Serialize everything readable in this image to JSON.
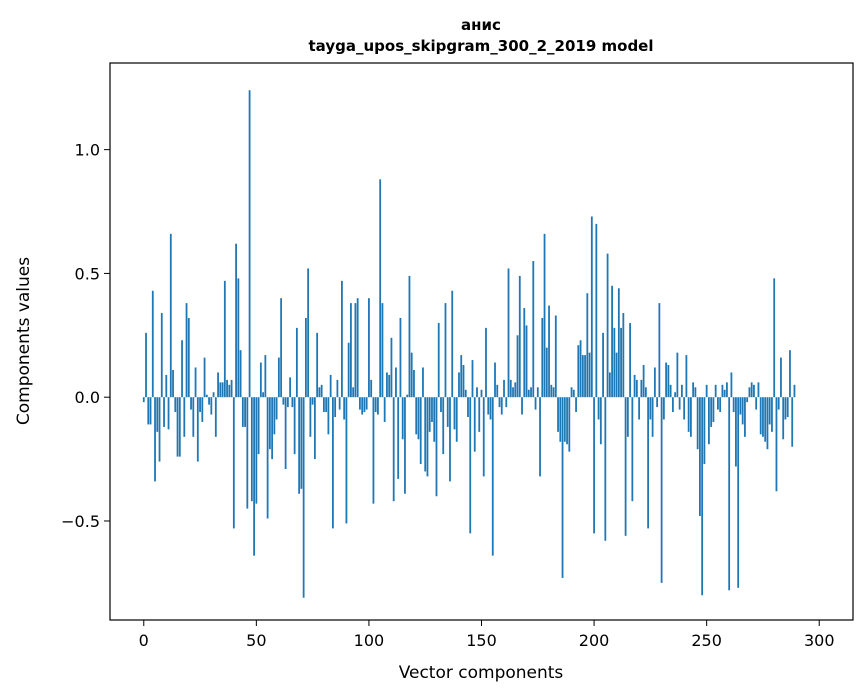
{
  "chart_data": {
    "type": "bar",
    "title": "анис",
    "subtitle": "tayga_upos_skipgram_300_2_2019 model",
    "xlabel": "Vector components",
    "ylabel": "Components values",
    "xlim": [
      -15,
      315
    ],
    "ylim": [
      -0.9,
      1.35
    ],
    "xticks": [
      0,
      50,
      100,
      150,
      200,
      250,
      300
    ],
    "yticks": [
      -0.5,
      0.0,
      0.5,
      1.0
    ],
    "ytick_labels": [
      "−0.5",
      "0.0",
      "0.5",
      "1.0"
    ],
    "bar_color": "#1f77b4",
    "grid": false,
    "values": [
      -0.02,
      0.26,
      -0.11,
      -0.11,
      0.43,
      -0.34,
      -0.14,
      -0.26,
      0.34,
      -0.12,
      0.09,
      -0.13,
      0.66,
      0.11,
      -0.06,
      -0.24,
      -0.24,
      0.23,
      -0.16,
      0.38,
      0.32,
      -0.05,
      -0.16,
      0.12,
      -0.26,
      -0.06,
      -0.1,
      0.16,
      0.01,
      -0.03,
      -0.07,
      0.02,
      -0.16,
      0.1,
      0.06,
      0.06,
      0.47,
      0.07,
      0.05,
      0.07,
      -0.53,
      0.62,
      0.48,
      0.19,
      -0.12,
      -0.12,
      -0.45,
      1.24,
      -0.42,
      -0.64,
      -0.43,
      -0.23,
      0.14,
      0.02,
      0.17,
      -0.49,
      -0.21,
      -0.25,
      -0.15,
      -0.09,
      0.16,
      0.4,
      -0.03,
      -0.29,
      -0.04,
      0.08,
      -0.04,
      -0.23,
      0.28,
      -0.39,
      -0.37,
      -0.81,
      0.32,
      0.52,
      -0.16,
      -0.03,
      -0.25,
      0.26,
      0.04,
      0.05,
      -0.06,
      -0.06,
      -0.15,
      0.09,
      -0.53,
      -0.08,
      0.07,
      -0.05,
      0.47,
      -0.09,
      -0.51,
      0.22,
      0.38,
      0.04,
      0.38,
      0.4,
      -0.05,
      -0.07,
      -0.06,
      -0.05,
      0.4,
      0.07,
      -0.43,
      -0.06,
      -0.07,
      0.88,
      0.38,
      -0.1,
      0.1,
      0.09,
      0.24,
      -0.42,
      0.12,
      -0.33,
      0.32,
      -0.17,
      -0.39,
      0.01,
      0.49,
      0.18,
      0.11,
      -0.15,
      -0.17,
      -0.27,
      0.12,
      -0.3,
      -0.32,
      -0.14,
      -0.1,
      -0.18,
      -0.4,
      0.3,
      -0.06,
      -0.23,
      0.38,
      -0.12,
      -0.34,
      0.43,
      -0.13,
      -0.18,
      0.1,
      0.17,
      0.13,
      0.03,
      -0.08,
      -0.55,
      0.15,
      -0.22,
      0.04,
      -0.14,
      0.03,
      -0.32,
      0.28,
      -0.07,
      -0.09,
      -0.64,
      0.14,
      0.05,
      -0.04,
      -0.07,
      0.07,
      -0.04,
      0.52,
      0.07,
      0.04,
      0.06,
      0.25,
      0.49,
      -0.07,
      0.36,
      0.29,
      0.03,
      0.04,
      0.55,
      -0.05,
      0.04,
      -0.32,
      0.32,
      0.66,
      0.2,
      0.37,
      0.05,
      0.04,
      0.33,
      -0.14,
      -0.18,
      -0.73,
      -0.18,
      -0.19,
      -0.22,
      0.04,
      0.03,
      -0.06,
      0.21,
      0.23,
      0.17,
      0.17,
      0.42,
      0.18,
      0.73,
      -0.55,
      0.7,
      -0.09,
      -0.19,
      0.26,
      -0.58,
      0.58,
      0.1,
      0.45,
      0.28,
      0.18,
      0.44,
      0.28,
      0.34,
      -0.56,
      -0.16,
      0.3,
      -0.42,
      0.09,
      0.07,
      -0.09,
      0.07,
      0.13,
      0.04,
      -0.53,
      -0.09,
      -0.16,
      0.12,
      -0.04,
      0.38,
      -0.75,
      -0.09,
      0.14,
      0.13,
      0.05,
      -0.06,
      0.02,
      0.18,
      -0.05,
      0.05,
      -0.09,
      0.17,
      -0.14,
      -0.16,
      0.06,
      0.04,
      -0.21,
      -0.48,
      -0.8,
      -0.27,
      0.05,
      -0.19,
      -0.12,
      -0.1,
      0.05,
      -0.05,
      -0.06,
      0.05,
      0.03,
      0.06,
      -0.78,
      0.1,
      -0.06,
      -0.28,
      -0.77,
      -0.07,
      -0.11,
      -0.16,
      -0.02,
      0.04,
      0.06,
      0.05,
      -0.05,
      0.06,
      -0.15,
      -0.16,
      -0.18,
      -0.21,
      -0.11,
      -0.14,
      0.48,
      -0.38,
      -0.05,
      0.16,
      -0.17,
      -0.09,
      -0.08,
      0.19,
      -0.2,
      0.05
    ]
  }
}
